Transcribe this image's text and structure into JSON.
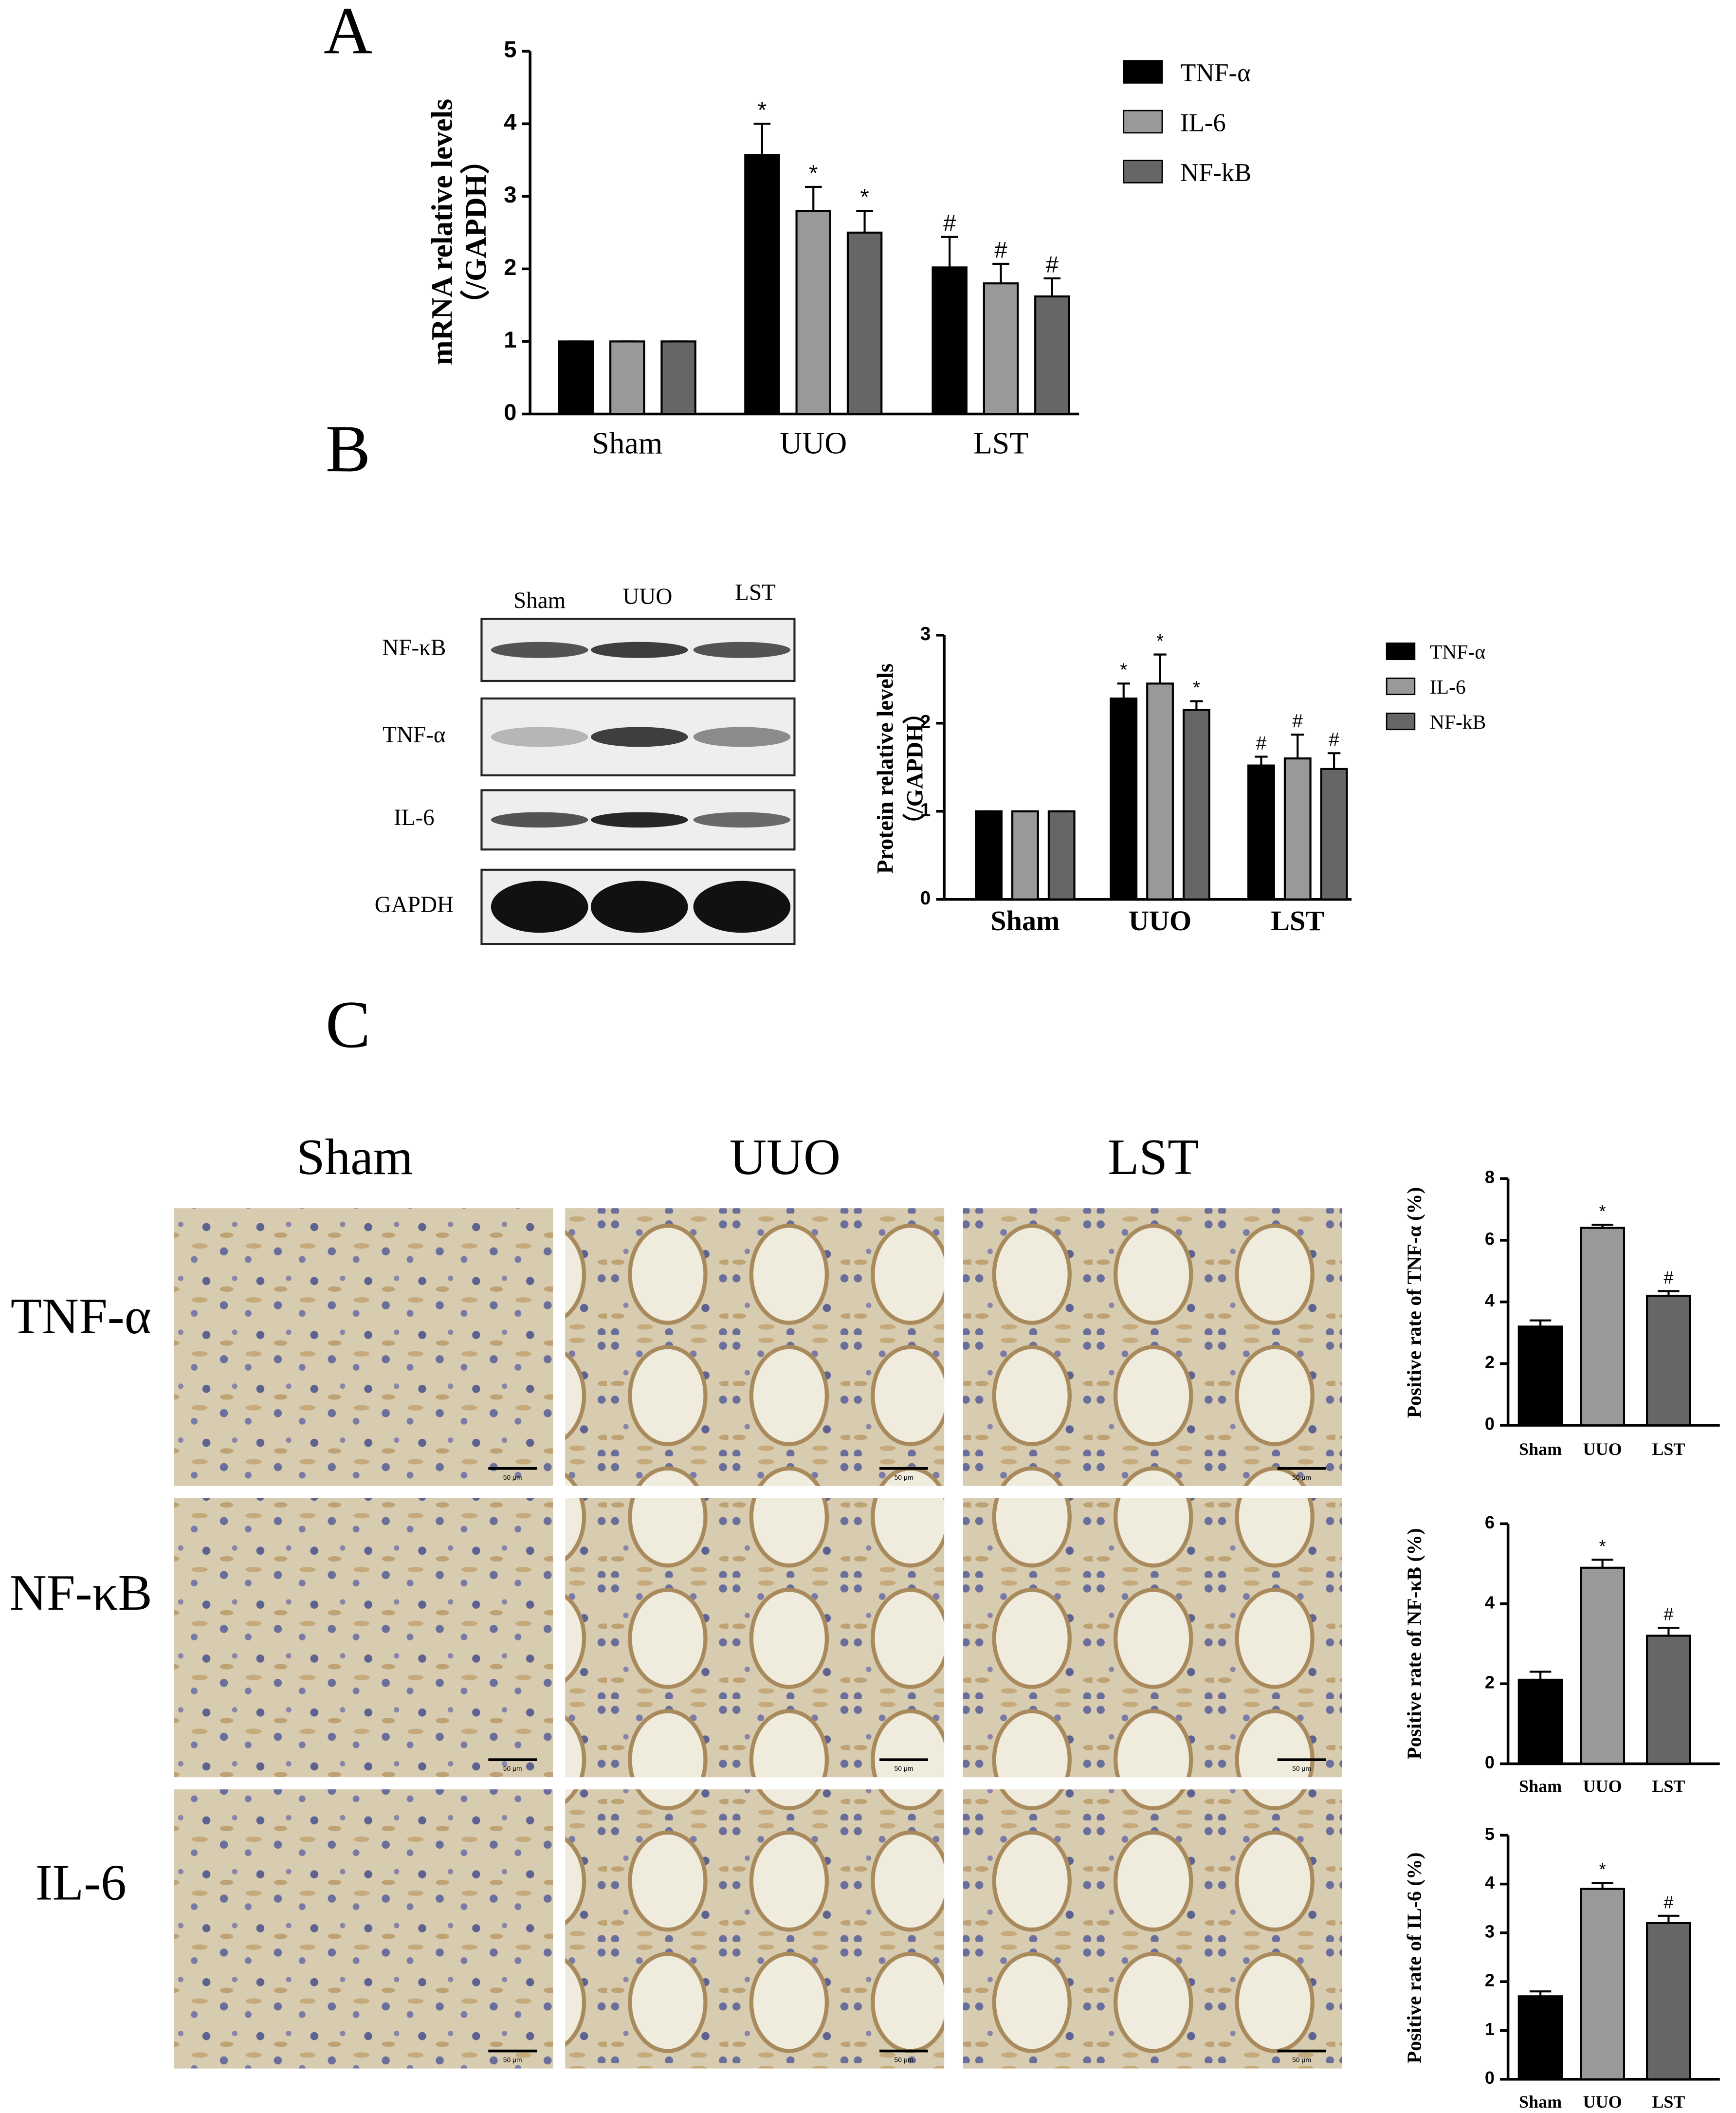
{
  "panel_labels": [
    "A",
    "B",
    "C"
  ],
  "blot": {
    "columns": [
      "Sham",
      "UUO",
      "LST"
    ],
    "rows": [
      "NF-κB",
      "TNF-α",
      "IL-6",
      "GAPDH"
    ]
  },
  "ihc": {
    "columns": [
      "Sham",
      "UUO",
      "LST"
    ],
    "rows": [
      "TNF-α",
      "NF-κB",
      "IL-6"
    ],
    "scale_bar": "50 μm"
  },
  "chart_data": [
    {
      "type": "bar",
      "ylabel": [
        "mRNA relative levels",
        "（/GAPDH）"
      ],
      "categories": [
        "Sham",
        "UUO",
        "LST"
      ],
      "ylim": [
        0,
        5
      ],
      "yticks": [
        0,
        1,
        2,
        3,
        4,
        5
      ],
      "series": [
        {
          "name": "TNF-α",
          "color": "#000000",
          "values": [
            1,
            3.57,
            2.02
          ],
          "errors": [
            0,
            0.43,
            0.42
          ],
          "annotations": [
            null,
            "*",
            "#"
          ]
        },
        {
          "name": "IL-6",
          "color": "#999999",
          "values": [
            1,
            2.8,
            1.8
          ],
          "errors": [
            0,
            0.33,
            0.27
          ],
          "annotations": [
            null,
            "*",
            "#"
          ]
        },
        {
          "name": "NF-kB",
          "color": "#666666",
          "values": [
            1,
            2.5,
            1.62
          ],
          "errors": [
            0,
            0.3,
            0.25
          ],
          "annotations": [
            null,
            "*",
            "#"
          ]
        }
      ]
    },
    {
      "type": "bar",
      "ylabel": [
        "Protein relative levels",
        "（/GAPDH）"
      ],
      "categories": [
        "Sham",
        "UUO",
        "LST"
      ],
      "ylim": [
        0,
        3
      ],
      "yticks": [
        0,
        1,
        2,
        3
      ],
      "series": [
        {
          "name": "TNF-α",
          "color": "#000000",
          "values": [
            1,
            2.28,
            1.52
          ],
          "errors": [
            0,
            0.17,
            0.1
          ],
          "annotations": [
            null,
            "*",
            "#"
          ]
        },
        {
          "name": "IL-6",
          "color": "#999999",
          "values": [
            1,
            2.45,
            1.6
          ],
          "errors": [
            0,
            0.33,
            0.27
          ],
          "annotations": [
            null,
            "*",
            "#"
          ]
        },
        {
          "name": "NF-kB",
          "color": "#666666",
          "values": [
            1,
            2.15,
            1.48
          ],
          "errors": [
            0,
            0.1,
            0.18
          ],
          "annotations": [
            null,
            "*",
            "#"
          ]
        }
      ]
    },
    {
      "type": "bar",
      "ylabel": [
        "Positive rate of TNF-α (%)"
      ],
      "categories": [
        "Sham",
        "UUO",
        "LST"
      ],
      "ylim": [
        0,
        8
      ],
      "yticks": [
        0,
        2,
        4,
        6,
        8
      ],
      "colors": [
        "#000000",
        "#999999",
        "#666666"
      ],
      "values": [
        3.2,
        6.4,
        4.2
      ],
      "errors": [
        0.2,
        0.1,
        0.15
      ],
      "annotations": [
        null,
        "*",
        "#"
      ]
    },
    {
      "type": "bar",
      "ylabel": [
        "Positive rate of NF-κB (%)"
      ],
      "categories": [
        "Sham",
        "UUO",
        "LST"
      ],
      "ylim": [
        0,
        6
      ],
      "yticks": [
        0,
        2,
        4,
        6
      ],
      "colors": [
        "#000000",
        "#999999",
        "#666666"
      ],
      "values": [
        2.1,
        4.9,
        3.2
      ],
      "errors": [
        0.2,
        0.2,
        0.2
      ],
      "annotations": [
        null,
        "*",
        "#"
      ]
    },
    {
      "type": "bar",
      "ylabel": [
        "Positive rate of IL-6 (%)"
      ],
      "categories": [
        "Sham",
        "UUO",
        "LST"
      ],
      "ylim": [
        0,
        5
      ],
      "yticks": [
        0,
        1,
        2,
        3,
        4,
        5
      ],
      "colors": [
        "#000000",
        "#999999",
        "#666666"
      ],
      "values": [
        1.7,
        3.9,
        3.2
      ],
      "errors": [
        0.1,
        0.12,
        0.15
      ],
      "annotations": [
        null,
        "*",
        "#"
      ]
    }
  ]
}
